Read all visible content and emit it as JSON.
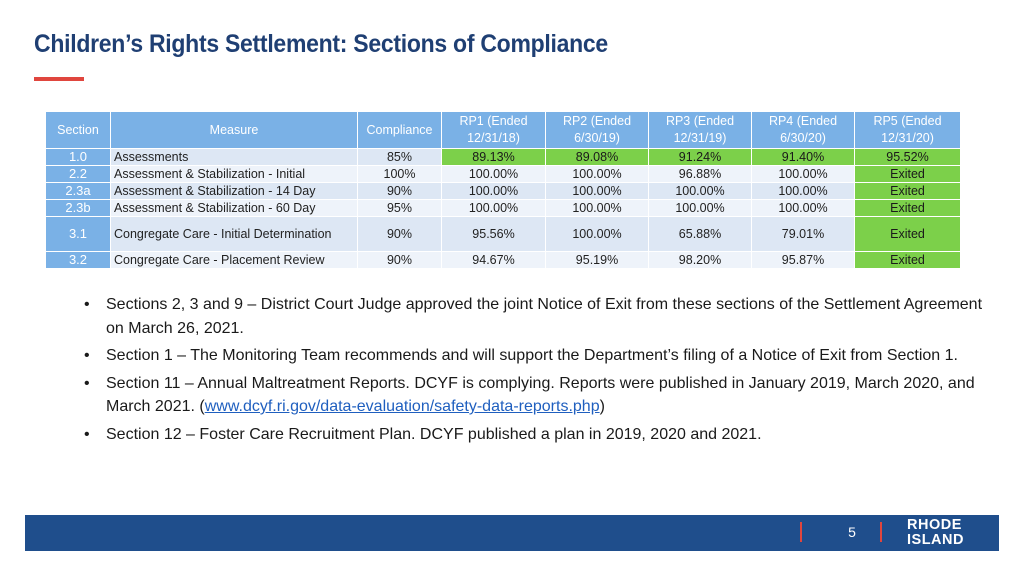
{
  "title": "Children’s Rights Settlement: Sections of Compliance",
  "table": {
    "headers": [
      "Section",
      "Measure",
      "Compliance",
      "RP1 (Ended 12/31/18)",
      "RP2 (Ended 6/30/19)",
      "RP3 (Ended 12/31/19)",
      "RP4 (Ended 6/30/20)",
      "RP5 (Ended 12/31/20)"
    ],
    "rows": [
      [
        "1.0",
        "Assessments",
        "85%",
        "89.13%",
        "89.08%",
        "91.24%",
        "91.40%",
        "95.52%"
      ],
      [
        "2.2",
        "Assessment & Stabilization - Initial",
        "100%",
        "100.00%",
        "100.00%",
        "96.88%",
        "100.00%",
        "Exited"
      ],
      [
        "2.3a",
        "Assessment & Stabilization - 14 Day",
        "90%",
        "100.00%",
        "100.00%",
        "100.00%",
        "100.00%",
        "Exited"
      ],
      [
        "2.3b",
        "Assessment & Stabilization - 60 Day",
        "95%",
        "100.00%",
        "100.00%",
        "100.00%",
        "100.00%",
        "Exited"
      ],
      [
        "3.1",
        "Congregate Care - Initial Determination",
        "90%",
        "95.56%",
        "100.00%",
        "65.88%",
        "79.01%",
        "Exited"
      ],
      [
        "3.2",
        "Congregate Care - Placement Review",
        "90%",
        "94.67%",
        "95.19%",
        "98.20%",
        "95.87%",
        "Exited"
      ]
    ],
    "highlight_color": "#7cd04a"
  },
  "bullets": [
    {
      "lead": "Sections 2, 3 and 9 –",
      "text": " District Court Judge approved the joint Notice of Exit from these sections of the Settlement Agreement on March 26, 2021."
    },
    {
      "lead": "Section 1",
      "text": " – The Monitoring Team recommends and will support the Department’s filing of a Notice of Exit from Section 1."
    },
    {
      "lead": "Section 11 – Annual Maltreatment Reports.",
      "text": " DCYF is complying. Reports were published in January 2019, March 2020, and March 2021. (",
      "link": "www.dcyf.ri.gov/data-evaluation/safety-data-reports.php",
      "after": ")"
    },
    {
      "lead": "Section 12 – Foster Care Recruitment Plan.",
      "text": " DCYF published a plan in 2019, 2020 and 2021."
    }
  ],
  "footer": {
    "page_number": "5",
    "logo_line1": "RHODE",
    "logo_line2": "ISLAND",
    "bar_color": "#1f4e8c",
    "accent_color": "#e0463e"
  }
}
